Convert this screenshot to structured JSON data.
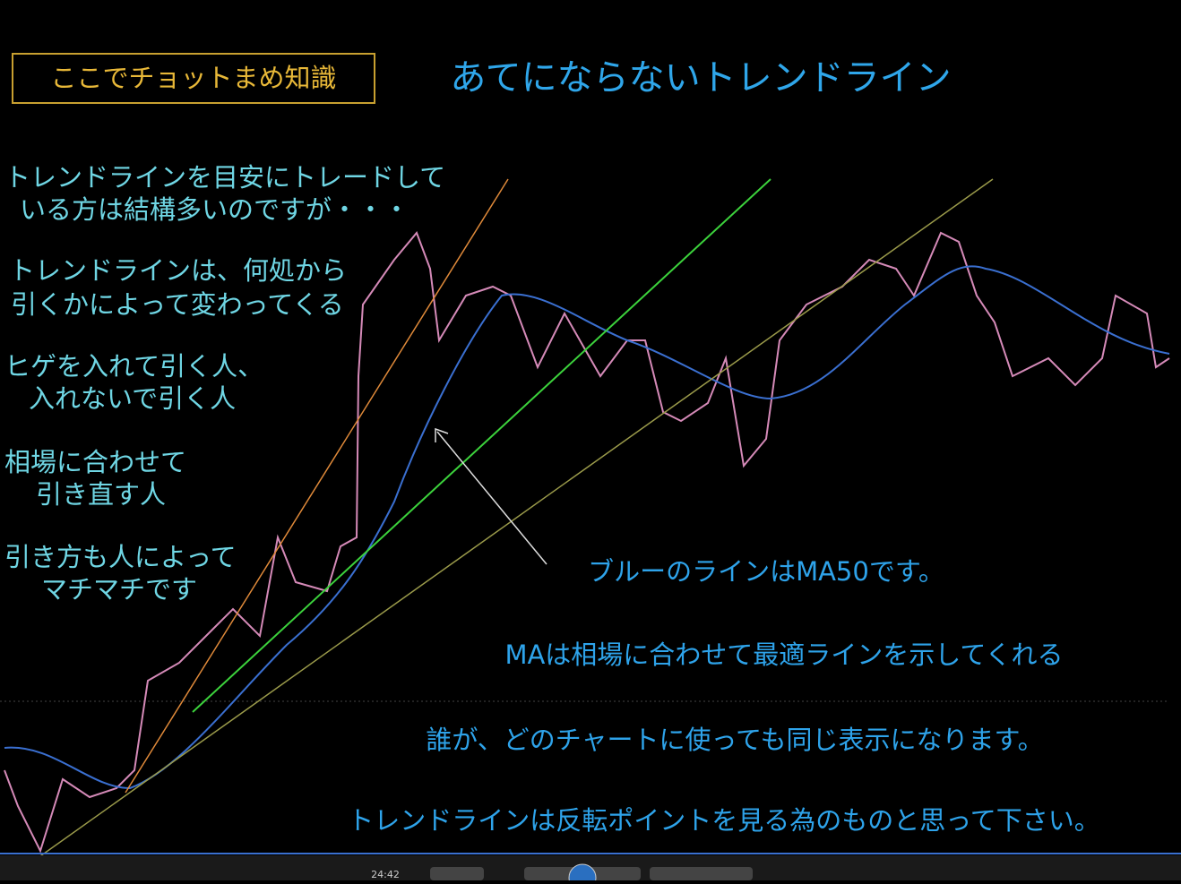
{
  "header": {
    "badge": "ここでチョットまめ知識",
    "title": "あてにならないトレンドライン"
  },
  "notes": [
    [
      "トレンドラインを目安にトレードして",
      "いる方は結構多いのですが・・・"
    ],
    [
      "トレンドラインは、何処から",
      "引くかによって変わってくる"
    ],
    [
      "ヒゲを入れて引く人、",
      "入れないで引く人"
    ],
    [
      "相場に合わせて",
      "引き直す人"
    ],
    [
      "引き方も人によって",
      "マチマチです"
    ]
  ],
  "annotations": [
    "ブルーのラインはMA50です。",
    "MAは相場に合わせて最適ラインを示してくれる",
    "誰が、どのチャートに使っても同じ表示になります。",
    "トレンドラインは反転ポイントを見る為のものと思って下さい。"
  ],
  "player": {
    "time": "24:42"
  }
}
